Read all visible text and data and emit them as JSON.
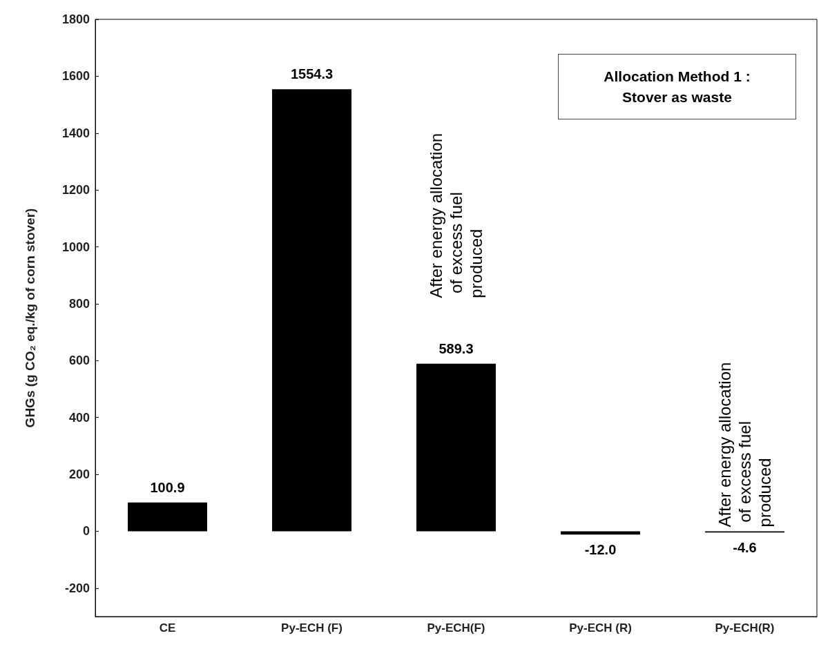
{
  "chart_data": {
    "type": "bar",
    "ylabel": "GHGs (g CO₂ eq./kg of corn stover)",
    "categories": [
      "CE",
      "Py-ECH (F)",
      "Py-ECH(F)",
      "Py-ECH (R)",
      "Py-ECH(R)"
    ],
    "values": [
      100.9,
      1554.3,
      589.3,
      -12.0,
      -4.6
    ],
    "value_labels": [
      "100.9",
      "1554.3",
      "589.3",
      "-12.0",
      "-4.6"
    ],
    "color": "#000000",
    "ylim": [
      -300,
      1800
    ],
    "yticks": [
      -200,
      0,
      200,
      400,
      600,
      800,
      1000,
      1200,
      1400,
      1600,
      1800
    ],
    "grid": false,
    "annotations": [
      "After energy allocation of excess fuel produced",
      "After energy allocation of excess fuel produced",
      "Allocation Method 1 : Stover as waste"
    ]
  }
}
